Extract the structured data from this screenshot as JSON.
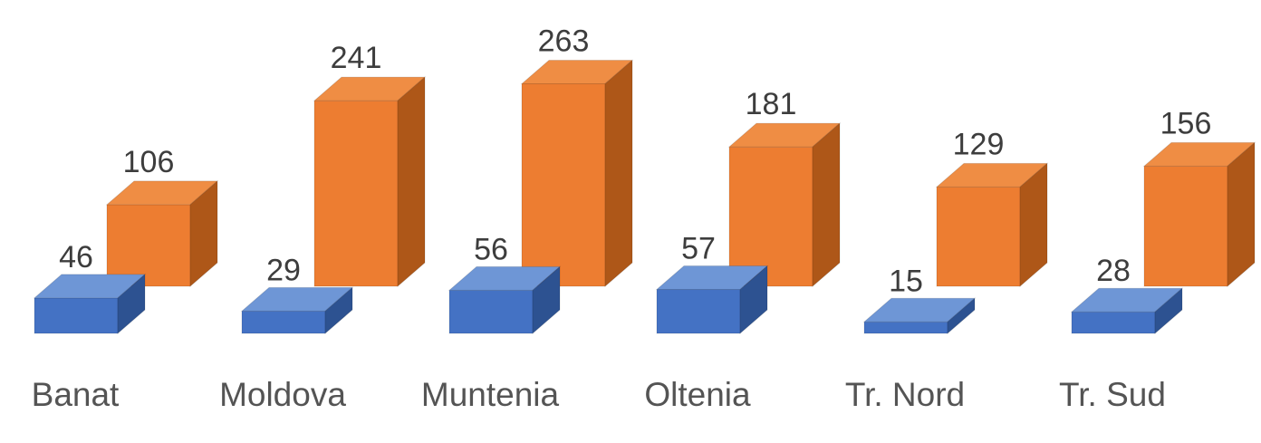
{
  "chart_data": {
    "type": "bar",
    "variant": "3d-clustered",
    "title": "",
    "xlabel": "",
    "ylabel": "",
    "ylim": [
      0,
      280
    ],
    "grid": false,
    "legend": false,
    "value_labels": true,
    "categories": [
      "Banat",
      "Moldova",
      "Muntenia",
      "Oltenia",
      "Tr. Nord",
      "Tr. Sud"
    ],
    "series": [
      {
        "name": "blue-series",
        "values": [
          46,
          29,
          56,
          57,
          15,
          28
        ],
        "color_front": "#4472c4",
        "color_top": "#6e96d6",
        "color_side": "#2d5291"
      },
      {
        "name": "orange-series",
        "values": [
          106,
          241,
          263,
          181,
          129,
          156
        ],
        "color_front": "#ed7d31",
        "color_top": "#ef8d44",
        "color_side": "#ae5718"
      }
    ],
    "label_color": "#3d3d3d",
    "category_label_color": "#545454",
    "background_color": "#ffffff"
  }
}
